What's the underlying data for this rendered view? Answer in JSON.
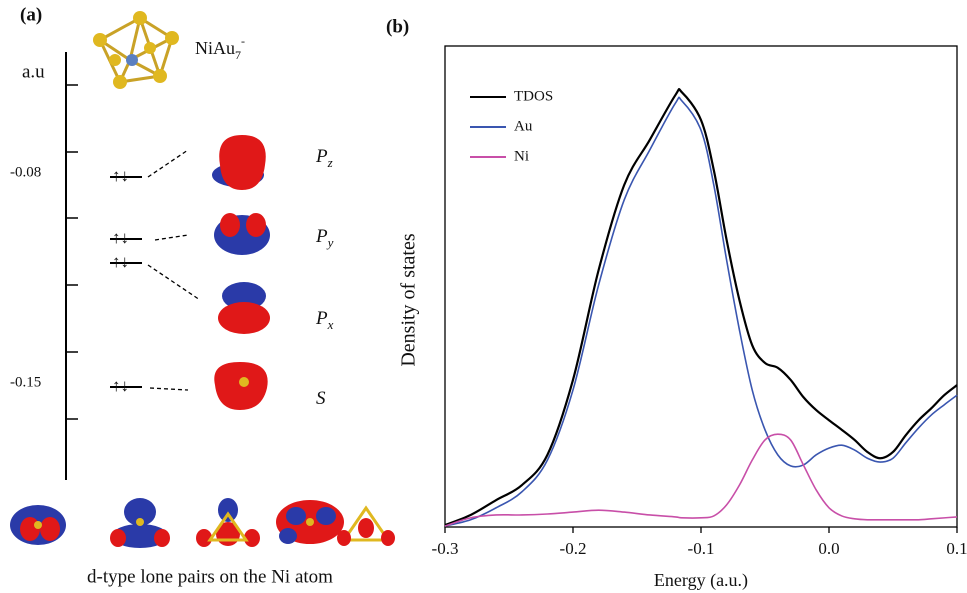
{
  "panel_a": {
    "label": "(a)",
    "molecule": {
      "base": "NiAu",
      "sub": "7",
      "sup": "-"
    },
    "axis_unit": "a.u",
    "level_labels": [
      "-0.08",
      "-0.15"
    ],
    "orbitals": [
      {
        "letter": "P",
        "sub": "z"
      },
      {
        "letter": "P",
        "sub": "y"
      },
      {
        "letter": "P",
        "sub": "x"
      },
      {
        "letter": "S",
        "sub": ""
      }
    ],
    "caption": "d-type lone pairs on the Ni atom"
  },
  "chart_data": {
    "type": "line",
    "label": "(b)",
    "xlabel": "Energy (a.u.)",
    "ylabel": "Density of states",
    "xlim": [
      -0.3,
      0.1
    ],
    "ylim": [
      0,
      1
    ],
    "xticks": [
      -0.3,
      -0.2,
      -0.1,
      {
        "value": 0,
        "label": "0.0"
      },
      0.1
    ],
    "x": [
      -0.3,
      -0.28,
      -0.26,
      -0.24,
      -0.22,
      -0.2,
      -0.18,
      -0.16,
      -0.14,
      -0.12,
      -0.115,
      -0.1,
      -0.09,
      -0.08,
      -0.07,
      -0.06,
      -0.05,
      -0.04,
      -0.03,
      -0.02,
      -0.01,
      0,
      0.01,
      0.02,
      0.03,
      0.04,
      0.05,
      0.06,
      0.07,
      0.08,
      0.09,
      0.1
    ],
    "series": [
      {
        "name": "TDOS",
        "color": "#000000",
        "values": [
          0.004,
          0.025,
          0.056,
          0.087,
          0.15,
          0.306,
          0.534,
          0.711,
          0.805,
          0.898,
          0.904,
          0.846,
          0.742,
          0.597,
          0.472,
          0.378,
          0.341,
          0.331,
          0.306,
          0.27,
          0.243,
          0.222,
          0.202,
          0.181,
          0.156,
          0.143,
          0.156,
          0.191,
          0.222,
          0.247,
          0.274,
          0.295
        ]
      },
      {
        "name": "Au",
        "color": "#3a56b0",
        "values": [
          0.002,
          0.015,
          0.04,
          0.073,
          0.139,
          0.285,
          0.503,
          0.68,
          0.784,
          0.881,
          0.886,
          0.825,
          0.711,
          0.555,
          0.41,
          0.285,
          0.202,
          0.15,
          0.127,
          0.129,
          0.15,
          0.164,
          0.17,
          0.16,
          0.143,
          0.135,
          0.143,
          0.175,
          0.206,
          0.233,
          0.254,
          0.274
        ]
      },
      {
        "name": "Ni",
        "color": "#c84fa8",
        "values": [
          0.002,
          0.019,
          0.025,
          0.025,
          0.027,
          0.031,
          0.035,
          0.031,
          0.025,
          0.021,
          0.019,
          0.019,
          0.023,
          0.046,
          0.087,
          0.139,
          0.181,
          0.193,
          0.181,
          0.129,
          0.077,
          0.04,
          0.023,
          0.017,
          0.015,
          0.015,
          0.015,
          0.015,
          0.015,
          0.017,
          0.019,
          0.021
        ]
      }
    ]
  }
}
